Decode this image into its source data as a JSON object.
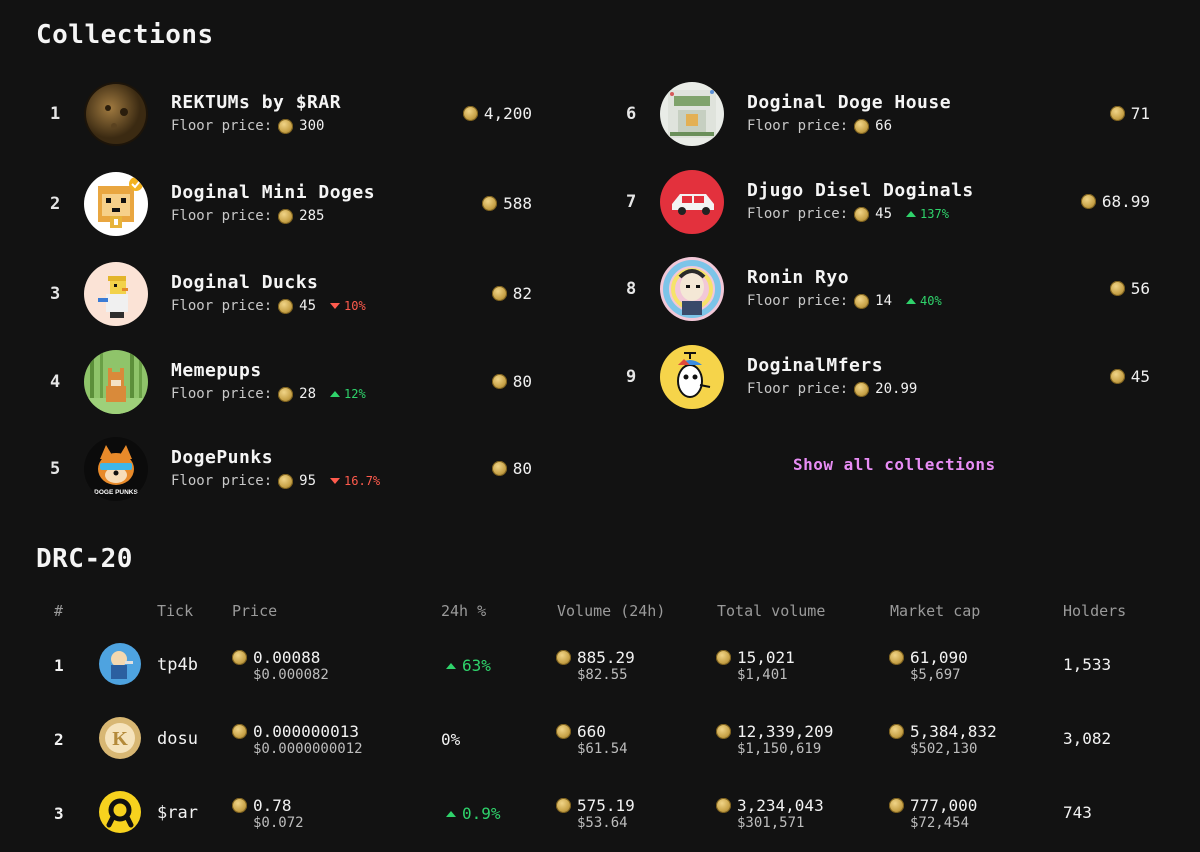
{
  "collections": {
    "title": "Collections",
    "floor_label": "Floor price:",
    "show_all_label": "Show all collections",
    "items": [
      {
        "rank": "1",
        "name": "REKTUMs by $RAR",
        "floor": "300",
        "change": "",
        "change_dir": "",
        "volume": "4,200"
      },
      {
        "rank": "2",
        "name": "Doginal Mini Doges",
        "floor": "285",
        "change": "",
        "change_dir": "",
        "volume": "588"
      },
      {
        "rank": "3",
        "name": "Doginal Ducks",
        "floor": "45",
        "change": "10%",
        "change_dir": "down",
        "volume": "82"
      },
      {
        "rank": "4",
        "name": "Memepups",
        "floor": "28",
        "change": "12%",
        "change_dir": "up",
        "volume": "80"
      },
      {
        "rank": "5",
        "name": "DogePunks",
        "floor": "95",
        "change": "16.7%",
        "change_dir": "down",
        "volume": "80"
      },
      {
        "rank": "6",
        "name": "Doginal Doge House",
        "floor": "66",
        "change": "",
        "change_dir": "",
        "volume": "71"
      },
      {
        "rank": "7",
        "name": "Djugo Disel Doginals",
        "floor": "45",
        "change": "137%",
        "change_dir": "up",
        "volume": "68.99"
      },
      {
        "rank": "8",
        "name": "Ronin Ryo",
        "floor": "14",
        "change": "40%",
        "change_dir": "up",
        "volume": "56"
      },
      {
        "rank": "9",
        "name": "DoginalMfers",
        "floor": "20.99",
        "change": "",
        "change_dir": "",
        "volume": "45"
      }
    ],
    "avatar_text": {
      "dogepunks": "DOGE PUNKS"
    }
  },
  "drc20": {
    "title": "DRC-20",
    "headers": {
      "rank": "#",
      "tick": "Tick",
      "price": "Price",
      "change": "24h %",
      "volume": "Volume (24h)",
      "total": "Total volume",
      "mcap": "Market cap",
      "holders": "Holders"
    },
    "rows": [
      {
        "rank": "1",
        "tick": "tp4b",
        "price": "0.00088",
        "price_usd": "$0.000082",
        "change": "63%",
        "change_dir": "up",
        "volume": "885.29",
        "volume_usd": "$82.55",
        "total": "15,021",
        "total_usd": "$1,401",
        "mcap": "61,090",
        "mcap_usd": "$5,697",
        "holders": "1,533"
      },
      {
        "rank": "2",
        "tick": "dosu",
        "price": "0.000000013",
        "price_usd": "$0.0000000012",
        "change": "0%",
        "change_dir": "flat",
        "volume": "660",
        "volume_usd": "$61.54",
        "total": "12,339,209",
        "total_usd": "$1,150,619",
        "mcap": "5,384,832",
        "mcap_usd": "$502,130",
        "holders": "3,082"
      },
      {
        "rank": "3",
        "tick": "$rar",
        "price": "0.78",
        "price_usd": "$0.072",
        "change": "0.9%",
        "change_dir": "up",
        "volume": "575.19",
        "volume_usd": "$53.64",
        "total": "3,234,043",
        "total_usd": "$301,571",
        "mcap": "777,000",
        "mcap_usd": "$72,454",
        "holders": "743"
      }
    ]
  },
  "colors": {
    "background": "#121212",
    "up": "#2fd36b",
    "down": "#ff5b4d",
    "link": "#e88df5",
    "coin": "#c9a44a"
  },
  "icons": {
    "coin": "dogecoin-icon",
    "up": "triangle-up-icon",
    "down": "triangle-down-icon"
  }
}
